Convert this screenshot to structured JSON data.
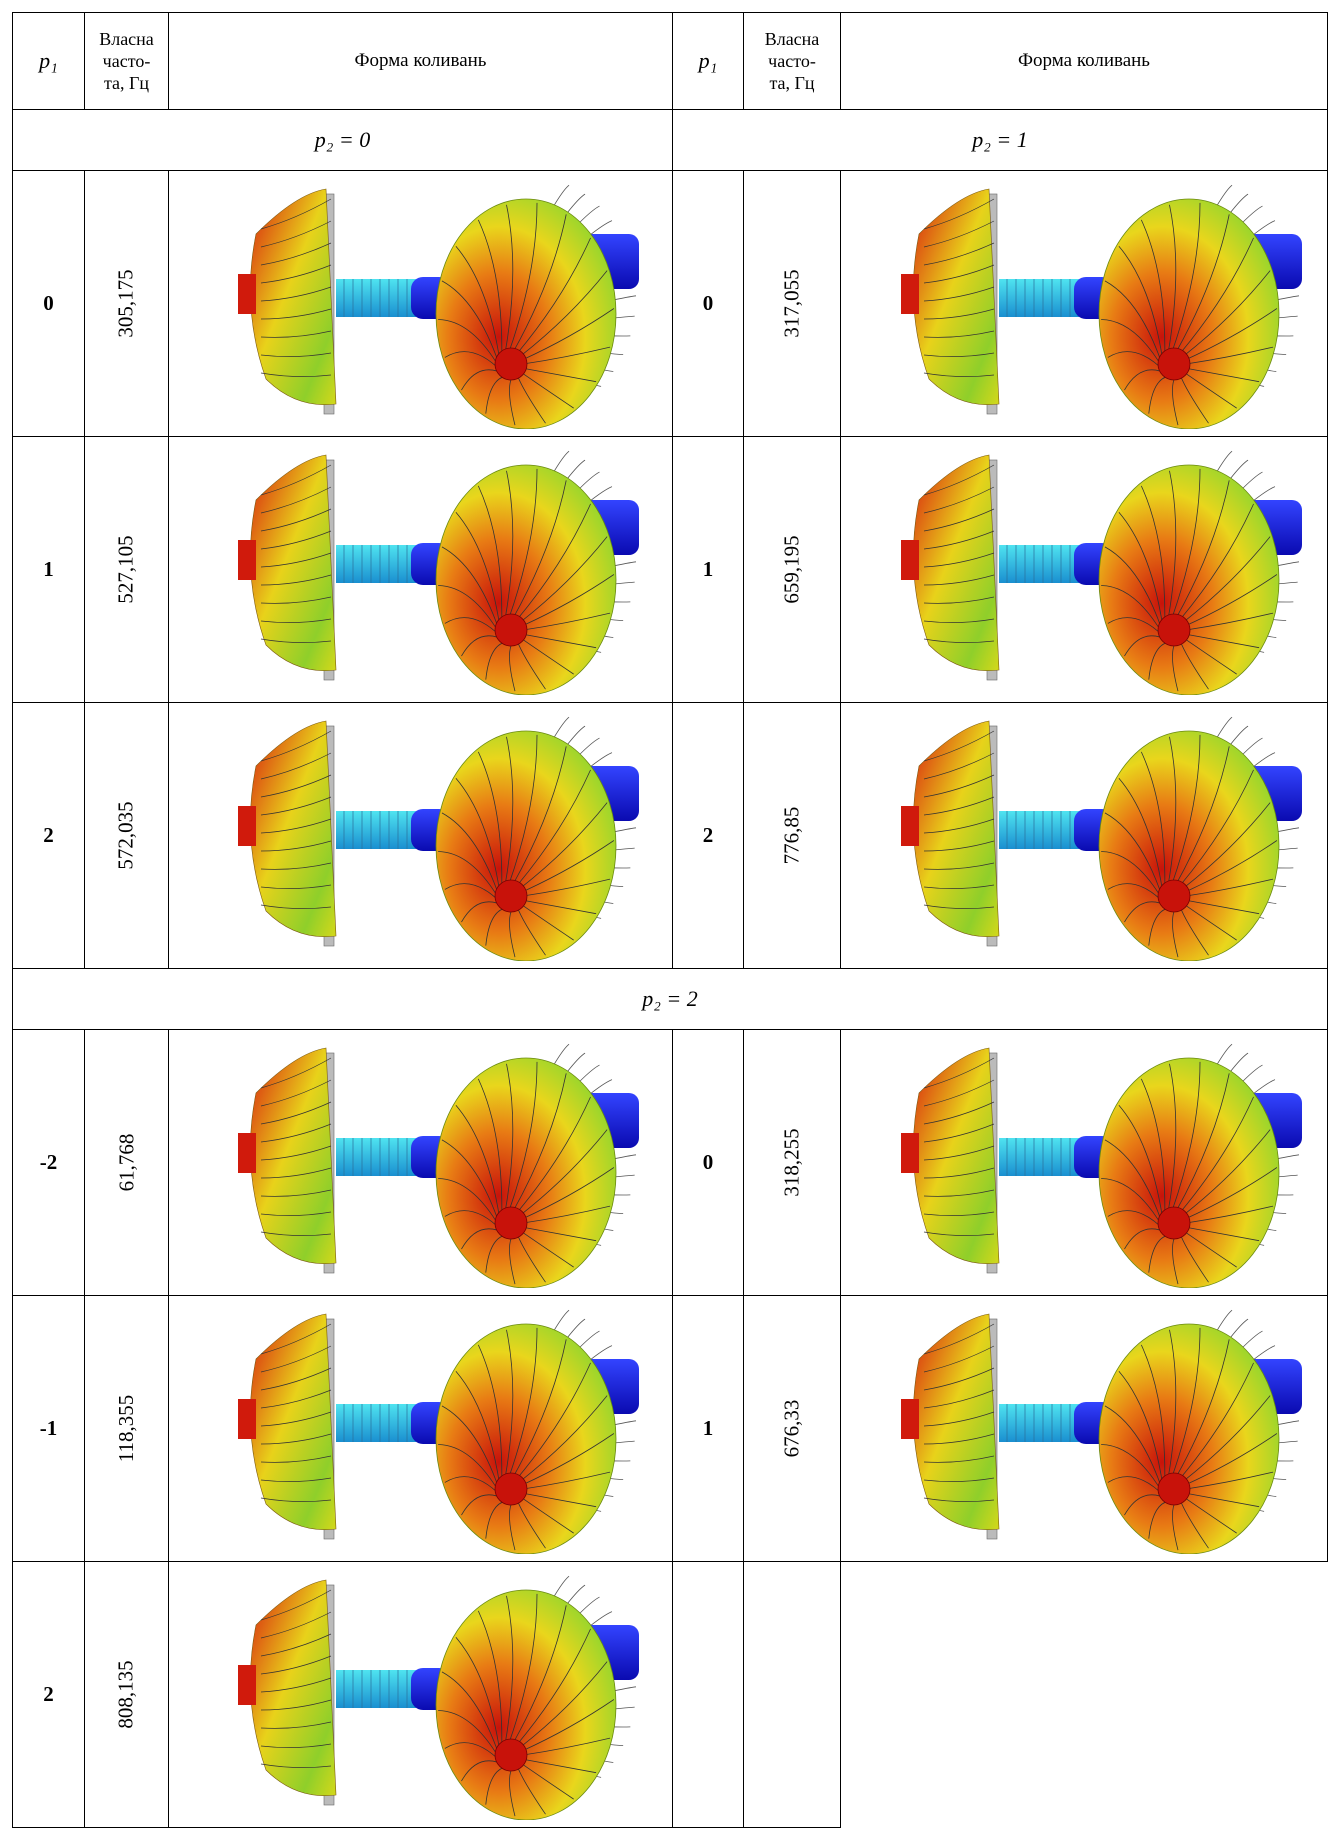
{
  "header": {
    "p1": "p₁",
    "frequency": [
      "Власна",
      "часто-",
      "та, Гц"
    ],
    "mode_shape": "Форма коливань"
  },
  "blocks": [
    {
      "labels": [
        "p₂ = 0",
        "p₂ = 1"
      ],
      "rows": [
        [
          {
            "p1": "0",
            "frequency": "305,175"
          },
          {
            "p1": "0",
            "frequency": "317,055"
          }
        ],
        [
          {
            "p1": "1",
            "frequency": "527,105"
          },
          {
            "p1": "1",
            "frequency": "659,195"
          }
        ],
        [
          {
            "p1": "2",
            "frequency": "572,035"
          },
          {
            "p1": "2",
            "frequency": "776,85"
          }
        ]
      ]
    },
    {
      "labels": [
        "p₂ = 2"
      ],
      "rows": [
        [
          {
            "p1": "-2",
            "frequency": "61,768"
          },
          {
            "p1": "0",
            "frequency": "318,255"
          }
        ],
        [
          {
            "p1": "-1",
            "frequency": "118,355"
          },
          {
            "p1": "1",
            "frequency": "676,33"
          }
        ],
        [
          {
            "p1": "2",
            "frequency": "808,135"
          }
        ]
      ]
    }
  ]
}
